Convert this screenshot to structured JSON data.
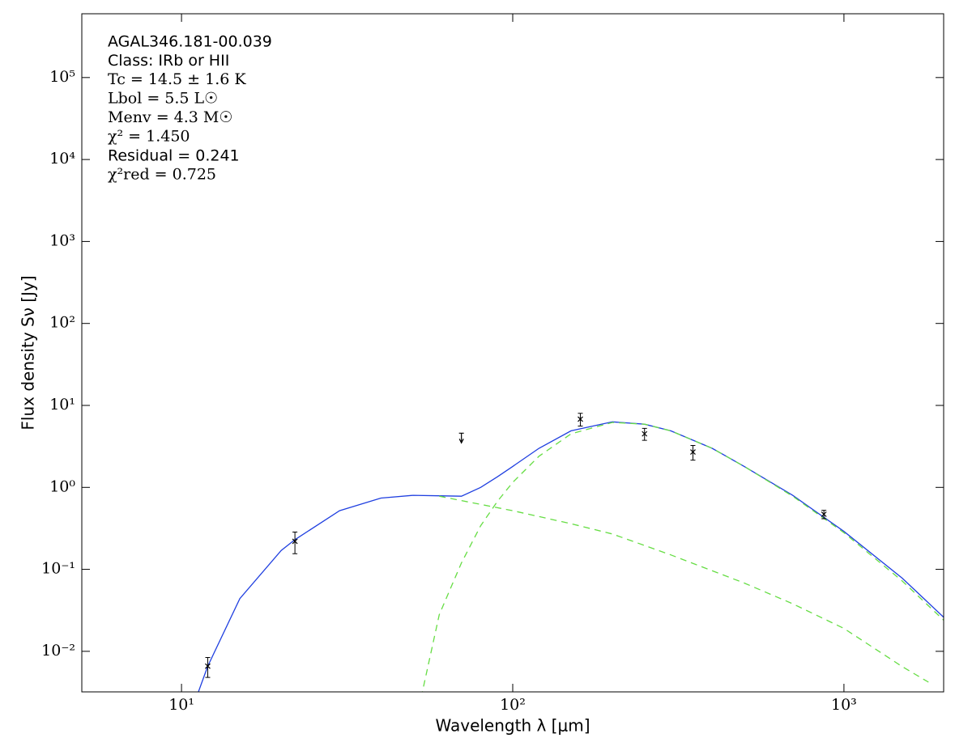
{
  "chart_data": {
    "type": "line",
    "annotations": [
      "AGAL346.181-00.039",
      "Class: IRb or HII",
      "Tc = 14.5 ± 1.6 K",
      "Lbol = 5.5 L☉",
      "Menv = 4.3 M☉",
      "χ² = 1.450",
      "Residual = 0.241",
      "χ²red = 0.725"
    ],
    "xlabel": "Wavelength λ [μm]",
    "ylabel": "Flux density Sν [Jy]",
    "log_x": true,
    "log_y": true,
    "xlim": [
      5,
      2000
    ],
    "ylim": [
      0.0032,
      600000
    ],
    "xticks": [
      {
        "value": 10,
        "label": "10¹"
      },
      {
        "value": 100,
        "label": "10²"
      },
      {
        "value": 1000,
        "label": "10³"
      }
    ],
    "yticks": [
      {
        "value": 0.01,
        "label": "10⁻²"
      },
      {
        "value": 0.1,
        "label": "10⁻¹"
      },
      {
        "value": 1,
        "label": "10⁰"
      },
      {
        "value": 10,
        "label": "10¹"
      },
      {
        "value": 100,
        "label": "10²"
      },
      {
        "value": 1000,
        "label": "10³"
      },
      {
        "value": 10000,
        "label": "10⁴"
      },
      {
        "value": 100000,
        "label": "10⁵"
      }
    ],
    "series": [
      {
        "color": "#1f3fe0",
        "style": "solid",
        "x": [
          11,
          12,
          15,
          20,
          22,
          30,
          40,
          50,
          60,
          70,
          80,
          90,
          100,
          120,
          150,
          200,
          250,
          300,
          400,
          500,
          700,
          1000,
          1500,
          2000
        ],
        "values": [
          0.0025,
          0.0066,
          0.044,
          0.17,
          0.23,
          0.52,
          0.74,
          0.8,
          0.79,
          0.78,
          1.0,
          1.35,
          1.8,
          3.0,
          4.9,
          6.3,
          5.9,
          4.9,
          3.0,
          1.8,
          0.8,
          0.29,
          0.078,
          0.026
        ]
      },
      {
        "color": "#66dd44",
        "style": "dashed",
        "x": [
          60,
          80,
          100,
          150,
          200,
          300,
          500,
          700,
          1000,
          1500,
          1800
        ],
        "values": [
          0.78,
          0.62,
          0.52,
          0.36,
          0.27,
          0.15,
          0.068,
          0.038,
          0.019,
          0.0065,
          0.0042
        ]
      },
      {
        "color": "#66dd44",
        "style": "dashed",
        "x": [
          52,
          60,
          70,
          80,
          90,
          100,
          120,
          150,
          200,
          250,
          300,
          400,
          500,
          700,
          1000,
          1500,
          2000
        ],
        "values": [
          0.002,
          0.028,
          0.12,
          0.34,
          0.68,
          1.15,
          2.4,
          4.5,
          6.2,
          5.9,
          4.9,
          3.0,
          1.8,
          0.78,
          0.28,
          0.072,
          0.024
        ]
      }
    ],
    "points": {
      "color": "#000000",
      "x": [
        12,
        22,
        160,
        250,
        350,
        870
      ],
      "values": [
        0.0066,
        0.22,
        6.8,
        4.5,
        2.7,
        0.47
      ],
      "errors": [
        0.0018,
        0.065,
        1.2,
        0.75,
        0.55,
        0.055
      ]
    },
    "upper_limits": {
      "color": "#000000",
      "x": [
        70
      ],
      "values": [
        4.0
      ]
    }
  }
}
